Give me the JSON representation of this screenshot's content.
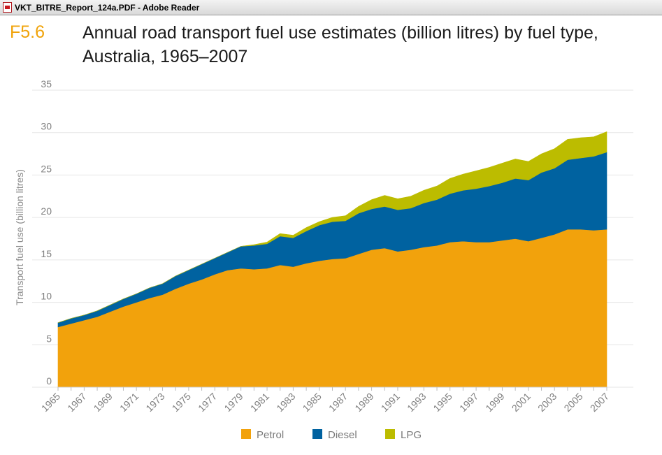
{
  "window": {
    "title": "VKT_BITRE_Report_124a.PDF - Adobe Reader",
    "icon": "pdf-file-icon"
  },
  "figure": {
    "number": "F5.6",
    "title": "Annual road transport fuel use estimates (billion litres) by fuel type, Australia, 1965–2007"
  },
  "chart_data": {
    "type": "area",
    "stacked": true,
    "title": "Annual road transport fuel use estimates (billion litres) by fuel type, Australia, 1965–2007",
    "xlabel": "",
    "ylabel": "Transport fuel use (billion litres)",
    "ylim": [
      0,
      35
    ],
    "yticks": [
      0,
      5,
      10,
      15,
      20,
      25,
      30,
      35
    ],
    "grid": true,
    "legend_position": "bottom",
    "x": [
      1965,
      1966,
      1967,
      1968,
      1969,
      1970,
      1971,
      1972,
      1973,
      1974,
      1975,
      1976,
      1977,
      1978,
      1979,
      1980,
      1981,
      1982,
      1983,
      1984,
      1985,
      1986,
      1987,
      1988,
      1989,
      1990,
      1991,
      1992,
      1993,
      1994,
      1995,
      1996,
      1997,
      1998,
      1999,
      2000,
      2001,
      2002,
      2003,
      2004,
      2005,
      2006,
      2007
    ],
    "xtick_labels": [
      "1965",
      "1967",
      "1969",
      "1971",
      "1973",
      "1975",
      "1977",
      "1979",
      "1981",
      "1983",
      "1985",
      "1987",
      "1989",
      "1991",
      "1993",
      "1995",
      "1997",
      "1999",
      "2001",
      "2003",
      "2005",
      "2007"
    ],
    "series": [
      {
        "name": "Petrol",
        "color": "#f2a20c",
        "values": [
          7.1,
          7.5,
          7.9,
          8.3,
          8.9,
          9.5,
          10.0,
          10.5,
          10.9,
          11.6,
          12.2,
          12.7,
          13.3,
          13.8,
          14.0,
          13.9,
          14.0,
          14.4,
          14.2,
          14.6,
          14.9,
          15.1,
          15.2,
          15.7,
          16.2,
          16.4,
          16.0,
          16.2,
          16.5,
          16.7,
          17.1,
          17.2,
          17.1,
          17.1,
          17.3,
          17.5,
          17.2,
          17.6,
          18.0,
          18.6,
          18.6,
          18.5,
          18.6
        ]
      },
      {
        "name": "Diesel",
        "color": "#0062a0",
        "values": [
          0.5,
          0.6,
          0.6,
          0.7,
          0.8,
          0.9,
          1.0,
          1.2,
          1.3,
          1.5,
          1.6,
          1.8,
          1.9,
          2.1,
          2.6,
          2.8,
          2.9,
          3.4,
          3.4,
          3.8,
          4.2,
          4.4,
          4.4,
          4.8,
          4.8,
          4.9,
          4.9,
          4.9,
          5.2,
          5.4,
          5.7,
          6.0,
          6.3,
          6.6,
          6.8,
          7.1,
          7.2,
          7.7,
          7.8,
          8.2,
          8.4,
          8.7,
          9.1
        ]
      },
      {
        "name": "LPG",
        "color": "#bcbc00",
        "values": [
          0,
          0,
          0,
          0,
          0,
          0,
          0,
          0,
          0,
          0,
          0,
          0,
          0,
          0,
          0,
          0.1,
          0.2,
          0.3,
          0.3,
          0.4,
          0.4,
          0.5,
          0.6,
          0.8,
          1.1,
          1.3,
          1.3,
          1.4,
          1.5,
          1.6,
          1.8,
          1.9,
          2.1,
          2.2,
          2.3,
          2.3,
          2.2,
          2.2,
          2.3,
          2.4,
          2.4,
          2.3,
          2.4
        ]
      }
    ]
  }
}
